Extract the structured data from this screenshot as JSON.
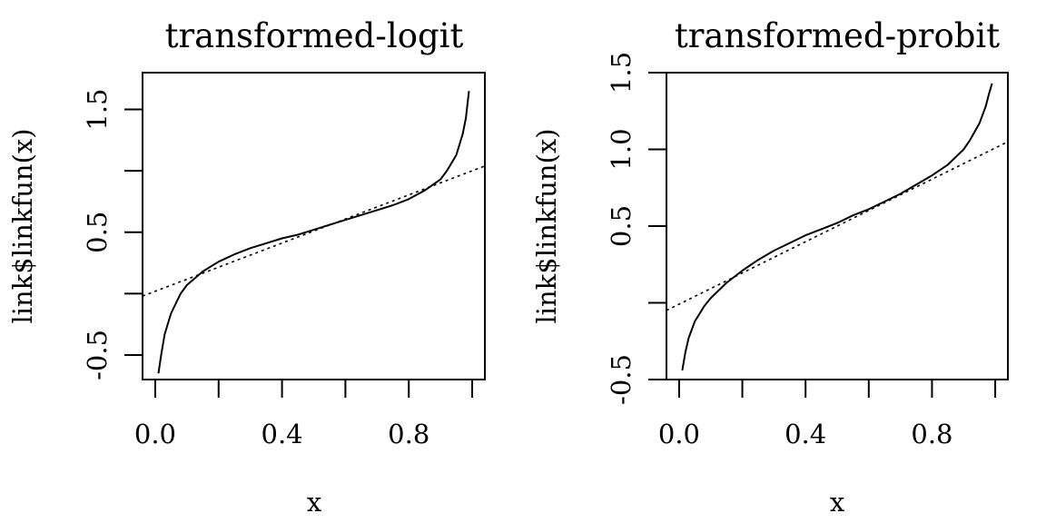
{
  "chart_data": [
    {
      "type": "line",
      "title": "transformed-logit",
      "xlabel": "x",
      "ylabel": "link$linkfun(x)",
      "xlim": [
        -0.04,
        1.04
      ],
      "ylim": [
        -0.7,
        1.8
      ],
      "xticks": [
        0.0,
        0.2,
        0.4,
        0.6,
        0.8,
        1.0
      ],
      "xtick_labels": [
        "0.0",
        "",
        "0.4",
        "",
        "0.8",
        ""
      ],
      "yticks": [
        -0.5,
        0.0,
        0.5,
        1.0,
        1.5
      ],
      "ytick_labels": [
        "-0.5",
        "",
        "0.5",
        "",
        "1.5"
      ],
      "series": [
        {
          "style": "solid",
          "x": [
            0.01,
            0.02,
            0.03,
            0.05,
            0.08,
            0.1,
            0.15,
            0.2,
            0.25,
            0.3,
            0.35,
            0.4,
            0.45,
            0.5,
            0.55,
            0.6,
            0.65,
            0.7,
            0.75,
            0.8,
            0.85,
            0.9,
            0.92,
            0.95,
            0.97,
            0.98,
            0.99
          ],
          "y": [
            -0.65,
            -0.48,
            -0.33,
            -0.16,
            0.0,
            0.07,
            0.18,
            0.26,
            0.32,
            0.37,
            0.41,
            0.45,
            0.48,
            0.52,
            0.56,
            0.6,
            0.64,
            0.68,
            0.72,
            0.77,
            0.84,
            0.93,
            1.0,
            1.13,
            1.3,
            1.43,
            1.65
          ]
        },
        {
          "style": "dotted",
          "x": [
            -0.04,
            1.04
          ],
          "y": [
            -0.02,
            1.04
          ]
        }
      ]
    },
    {
      "type": "line",
      "title": "transformed-probit",
      "xlabel": "x",
      "ylabel": "link$linkfun(x)",
      "xlim": [
        -0.04,
        1.04
      ],
      "ylim": [
        -0.5,
        1.5
      ],
      "xticks": [
        0.0,
        0.2,
        0.4,
        0.6,
        0.8,
        1.0
      ],
      "xtick_labels": [
        "0.0",
        "",
        "0.4",
        "",
        "0.8",
        ""
      ],
      "yticks": [
        -0.5,
        0.0,
        0.5,
        1.0,
        1.5
      ],
      "ytick_labels": [
        "-0.5",
        "",
        "0.5",
        "1.0",
        "1.5"
      ],
      "series": [
        {
          "style": "solid",
          "x": [
            0.01,
            0.02,
            0.03,
            0.05,
            0.08,
            0.1,
            0.15,
            0.2,
            0.25,
            0.3,
            0.35,
            0.4,
            0.45,
            0.5,
            0.55,
            0.6,
            0.65,
            0.7,
            0.75,
            0.8,
            0.85,
            0.9,
            0.92,
            0.95,
            0.97,
            0.98,
            0.99
          ],
          "y": [
            -0.44,
            -0.32,
            -0.23,
            -0.12,
            -0.02,
            0.03,
            0.13,
            0.21,
            0.28,
            0.34,
            0.39,
            0.44,
            0.48,
            0.52,
            0.57,
            0.61,
            0.66,
            0.71,
            0.77,
            0.83,
            0.9,
            1.0,
            1.06,
            1.17,
            1.28,
            1.36,
            1.43
          ]
        },
        {
          "style": "dotted",
          "x": [
            -0.04,
            1.04
          ],
          "y": [
            -0.05,
            1.05
          ]
        }
      ]
    }
  ]
}
